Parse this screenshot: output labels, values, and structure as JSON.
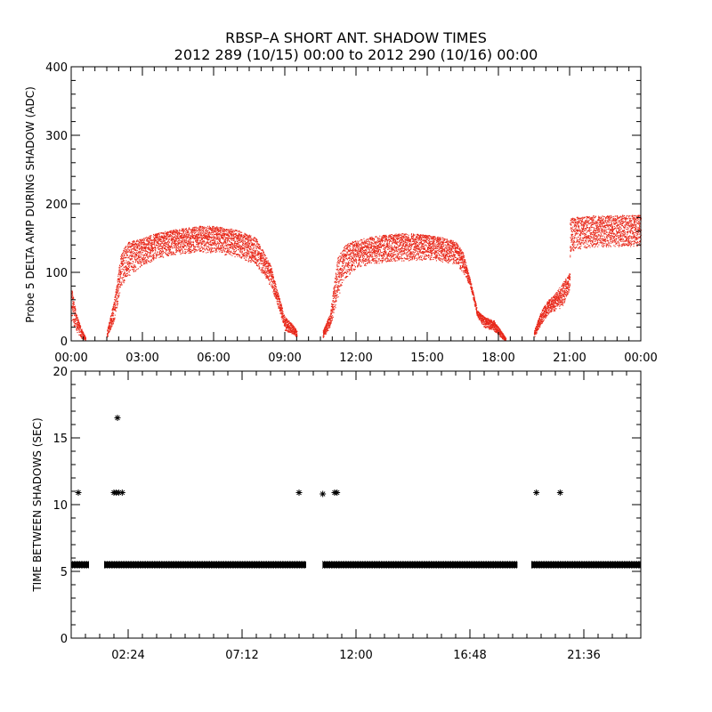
{
  "chart_data": [
    {
      "type": "scatter",
      "title": "RBSP–A SHORT ANT. SHADOW TIMES",
      "subtitle": "2012 289 (10/15) 00:00 to 2012 290 (10/16) 00:00",
      "xlabel": "",
      "ylabel": "Probe 5 DELTA AMP DURING SHADOW (ADC)",
      "xlim": [
        0,
        24
      ],
      "ylim": [
        0,
        400
      ],
      "x_ticks": [
        0,
        3,
        6,
        9,
        12,
        15,
        18,
        21,
        24
      ],
      "x_tick_labels": [
        "00:00",
        "03:00",
        "06:00",
        "09:00",
        "12:00",
        "15:00",
        "18:00",
        "21:00",
        "00:00"
      ],
      "y_ticks": [
        0,
        100,
        200,
        300,
        400
      ],
      "y_tick_labels": [
        "0",
        "100",
        "200",
        "300",
        "400"
      ],
      "marker_color": "#e8281a",
      "x_units": "hours",
      "envelope": [
        {
          "x": [
            0.0,
            0.2,
            0.4,
            0.6
          ],
          "low": [
            30,
            15,
            5,
            0
          ],
          "high": [
            80,
            40,
            20,
            5
          ]
        },
        {
          "x": [
            1.5,
            1.8,
            2.1,
            2.4,
            3.0,
            3.6,
            4.2,
            4.8,
            5.4,
            6.0,
            6.6,
            7.2,
            7.8,
            8.4,
            8.7,
            9.0,
            9.3,
            9.5
          ],
          "low": [
            5,
            30,
            80,
            95,
            110,
            120,
            125,
            128,
            130,
            128,
            125,
            120,
            110,
            80,
            50,
            15,
            10,
            5
          ],
          "high": [
            15,
            60,
            130,
            145,
            150,
            158,
            162,
            165,
            168,
            168,
            165,
            160,
            150,
            110,
            70,
            35,
            25,
            15
          ]
        },
        {
          "x": [
            10.6,
            10.9,
            11.2,
            11.5,
            12.0,
            12.6,
            13.2,
            13.8,
            14.4,
            15.0,
            15.6,
            16.2,
            16.5,
            16.8,
            17.1,
            17.4,
            17.8,
            18.1,
            18.3
          ],
          "low": [
            5,
            20,
            60,
            90,
            105,
            112,
            115,
            117,
            118,
            118,
            116,
            112,
            100,
            80,
            35,
            20,
            15,
            5,
            0
          ],
          "high": [
            15,
            40,
            120,
            140,
            148,
            152,
            155,
            157,
            157,
            155,
            152,
            145,
            130,
            90,
            45,
            35,
            30,
            15,
            5
          ]
        },
        {
          "x": [
            19.5,
            19.8,
            20.1,
            20.4,
            20.7,
            21.0,
            21.01,
            21.5,
            22.0,
            22.5,
            23.0,
            23.5,
            24.0
          ],
          "low": [
            5,
            25,
            40,
            45,
            50,
            75,
            130,
            135,
            135,
            138,
            138,
            138,
            138
          ],
          "high": [
            15,
            45,
            60,
            70,
            85,
            100,
            180,
            182,
            183,
            183,
            184,
            184,
            184
          ]
        }
      ]
    },
    {
      "type": "scatter",
      "title": "",
      "xlabel": "",
      "ylabel": "TIME BETWEEN SHADOWS (SEC)",
      "xlim": [
        0,
        24
      ],
      "ylim": [
        0,
        20
      ],
      "x_ticks": [
        2.4,
        7.2,
        12.0,
        16.8,
        21.6
      ],
      "x_tick_labels": [
        "02:24",
        "07:12",
        "12:00",
        "16:48",
        "21:36"
      ],
      "y_ticks": [
        0,
        5,
        10,
        15,
        20
      ],
      "y_tick_labels": [
        "0",
        "5",
        "10",
        "15",
        "20"
      ],
      "marker": "asterisk",
      "marker_color": "#000000",
      "x_units": "hours",
      "baseline_value": 5.5,
      "baseline_segments": [
        [
          0.0,
          0.75
        ],
        [
          1.4,
          9.9
        ],
        [
          10.6,
          18.8
        ],
        [
          19.4,
          24.0
        ]
      ],
      "points": [
        {
          "x": 0.3,
          "y": 10.9
        },
        {
          "x": 1.8,
          "y": 10.9
        },
        {
          "x": 1.9,
          "y": 10.9
        },
        {
          "x": 2.0,
          "y": 10.9
        },
        {
          "x": 2.15,
          "y": 10.9
        },
        {
          "x": 1.95,
          "y": 16.5
        },
        {
          "x": 9.6,
          "y": 10.9
        },
        {
          "x": 10.6,
          "y": 10.8
        },
        {
          "x": 11.1,
          "y": 10.9
        },
        {
          "x": 11.2,
          "y": 10.9
        },
        {
          "x": 19.6,
          "y": 10.9
        },
        {
          "x": 20.6,
          "y": 10.9
        }
      ]
    }
  ]
}
